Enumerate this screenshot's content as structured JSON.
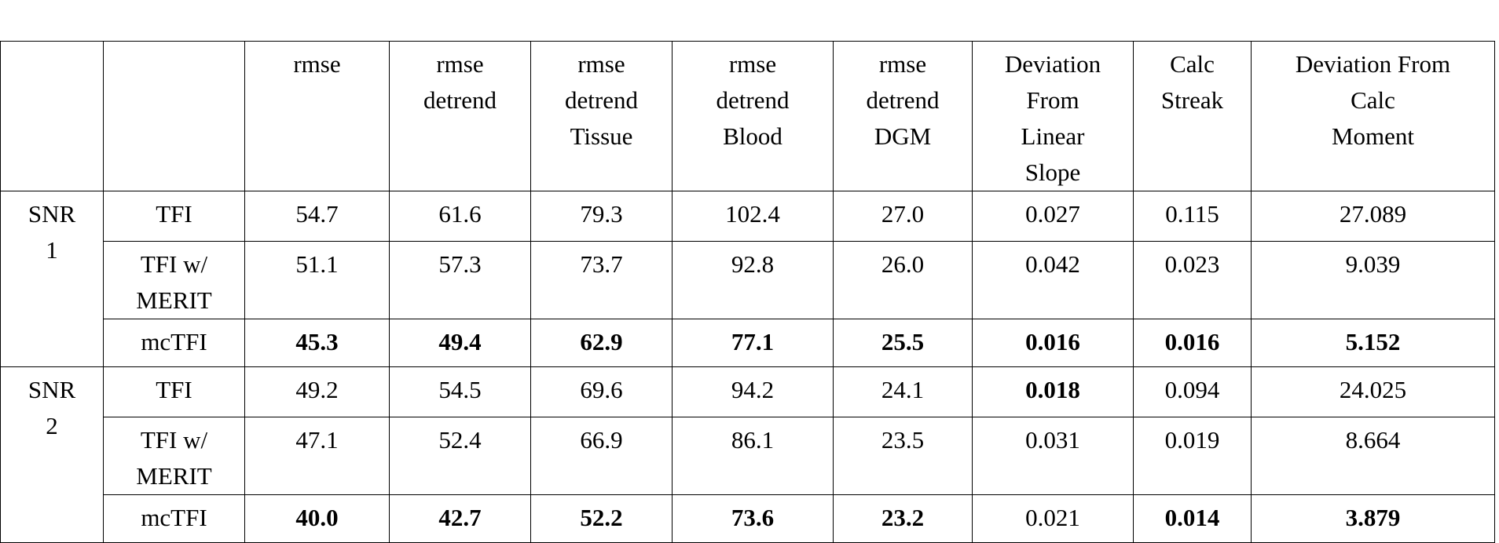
{
  "table": {
    "columns": [
      [
        "rmse"
      ],
      [
        "rmse",
        "detrend"
      ],
      [
        "rmse",
        "detrend",
        "Tissue"
      ],
      [
        "rmse",
        "detrend",
        "Blood"
      ],
      [
        "rmse",
        "detrend",
        "DGM"
      ],
      [
        "Deviation",
        "From",
        "Linear",
        "Slope"
      ],
      [
        "Calc",
        "Streak"
      ],
      [
        "Deviation From",
        "Calc",
        "Moment"
      ]
    ],
    "groups": [
      {
        "label": [
          "SNR",
          "1"
        ],
        "rows": [
          {
            "method": [
              "TFI"
            ],
            "values": [
              "54.7",
              "61.6",
              "79.3",
              "102.4",
              "27.0",
              "0.027",
              "0.115",
              "27.089"
            ],
            "bold": [
              false,
              false,
              false,
              false,
              false,
              false,
              false,
              false
            ]
          },
          {
            "method": [
              "TFI w/",
              "MERIT"
            ],
            "values": [
              "51.1",
              "57.3",
              "73.7",
              "92.8",
              "26.0",
              "0.042",
              "0.023",
              "9.039"
            ],
            "bold": [
              false,
              false,
              false,
              false,
              false,
              false,
              false,
              false
            ]
          },
          {
            "method": [
              "mcTFI"
            ],
            "values": [
              "45.3",
              "49.4",
              "62.9",
              "77.1",
              "25.5",
              "0.016",
              "0.016",
              "5.152"
            ],
            "bold": [
              true,
              true,
              true,
              true,
              true,
              true,
              true,
              true
            ]
          }
        ]
      },
      {
        "label": [
          "SNR",
          "2"
        ],
        "rows": [
          {
            "method": [
              "TFI"
            ],
            "values": [
              "49.2",
              "54.5",
              "69.6",
              "94.2",
              "24.1",
              "0.018",
              "0.094",
              "24.025"
            ],
            "bold": [
              false,
              false,
              false,
              false,
              false,
              true,
              false,
              false
            ]
          },
          {
            "method": [
              "TFI w/",
              "MERIT"
            ],
            "values": [
              "47.1",
              "52.4",
              "66.9",
              "86.1",
              "23.5",
              "0.031",
              "0.019",
              "8.664"
            ],
            "bold": [
              false,
              false,
              false,
              false,
              false,
              false,
              false,
              false
            ]
          },
          {
            "method": [
              "mcTFI"
            ],
            "values": [
              "40.0",
              "42.7",
              "52.2",
              "73.6",
              "23.2",
              "0.021",
              "0.014",
              "3.879"
            ],
            "bold": [
              true,
              true,
              true,
              true,
              true,
              false,
              true,
              true
            ]
          }
        ]
      }
    ]
  }
}
